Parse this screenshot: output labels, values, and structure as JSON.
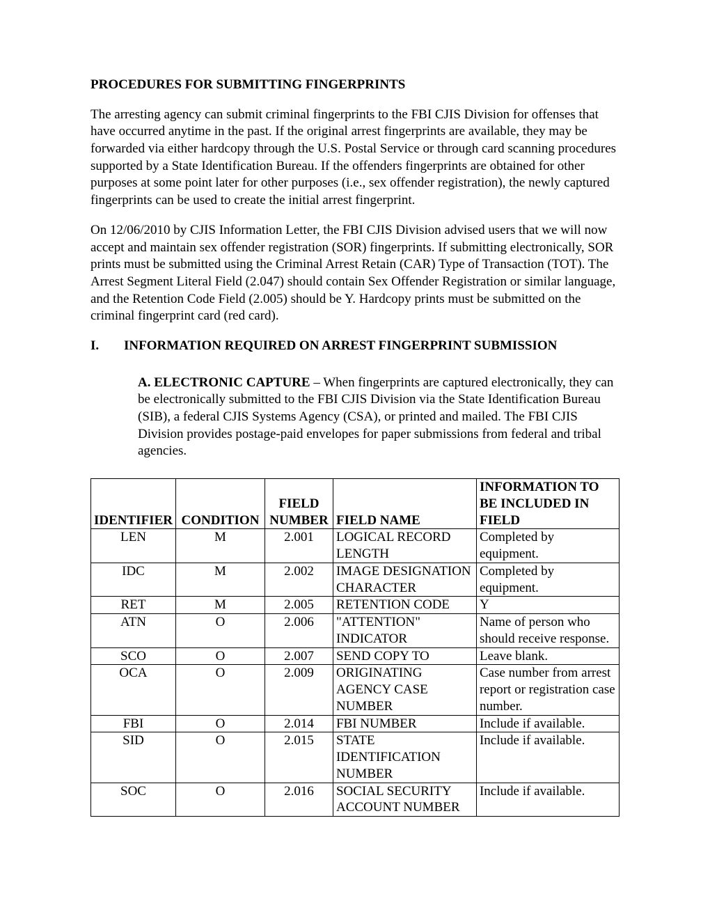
{
  "title": "PROCEDURES FOR SUBMITTING FINGERPRINTS",
  "para1": "The arresting agency can submit criminal fingerprints to the FBI CJIS Division for offenses that have occurred anytime in the past.  If the original arrest fingerprints are available, they may be forwarded via either hardcopy through the U.S. Postal Service or through card scanning procedures supported by a State Identification Bureau.  If the offenders fingerprints are obtained for other purposes at some point later for other purposes (i.e., sex offender registration), the newly captured fingerprints can be used to create the initial arrest fingerprint.",
  "para2": "On 12/06/2010 by CJIS Information Letter, the FBI CJIS Division advised users that we will now accept and maintain sex offender registration (SOR) fingerprints.  If submitting electronically, SOR prints must be submitted using the Criminal Arrest Retain (CAR) Type of Transaction (TOT).  The Arrest Segment Literal Field (2.047) should contain Sex Offender Registration or similar language, and the Retention Code Field (2.005) should be Y.  Hardcopy prints must be submitted on the criminal fingerprint card (red card).",
  "section": {
    "num": "I.",
    "title": "INFORMATION REQUIRED ON ARREST FINGERPRINT SUBMISSION"
  },
  "subsection": {
    "letter": "A.",
    "title": "ELECTRONIC CAPTURE",
    "text": " – When fingerprints are captured electronically, they can be electronically submitted to the FBI CJIS Division via the State Identification Bureau (SIB), a federal CJIS Systems Agency (CSA), or printed and mailed.  The FBI CJIS Division provides postage-paid envelopes for paper submissions from federal and tribal agencies."
  },
  "table": {
    "headers": {
      "identifier": "IDENTIFIER",
      "condition": "CONDITION",
      "fieldnum": "FIELD NUMBER",
      "fieldname": "FIELD NAME",
      "info": "INFORMATION TO BE INCLUDED IN FIELD"
    },
    "rows": [
      {
        "id": "LEN",
        "cond": "M",
        "num": "2.001",
        "name": "LOGICAL RECORD LENGTH",
        "info": "Completed by equipment."
      },
      {
        "id": "IDC",
        "cond": "M",
        "num": "2.002",
        "name": "IMAGE DESIGNATION CHARACTER",
        "info": "Completed by equipment."
      },
      {
        "id": "RET",
        "cond": "M",
        "num": "2.005",
        "name": "RETENTION CODE",
        "info": "Y"
      },
      {
        "id": "ATN",
        "cond": "O",
        "num": "2.006",
        "name": "\"ATTENTION\" INDICATOR",
        "info": "Name of person who should receive response."
      },
      {
        "id": "SCO",
        "cond": "O",
        "num": "2.007",
        "name": "SEND COPY TO",
        "info": "Leave blank."
      },
      {
        "id": "OCA",
        "cond": "O",
        "num": "2.009",
        "name": "ORIGINATING AGENCY CASE NUMBER",
        "info": "Case number from arrest report or registration case number."
      },
      {
        "id": "FBI",
        "cond": "O",
        "num": "2.014",
        "name": "FBI NUMBER",
        "info": "Include if available."
      },
      {
        "id": "SID",
        "cond": "O",
        "num": "2.015",
        "name": "STATE IDENTIFICATION NUMBER",
        "info": "Include if available."
      },
      {
        "id": "SOC",
        "cond": "O",
        "num": "2.016",
        "name": "SOCIAL SECURITY ACCOUNT NUMBER",
        "info": "Include if available."
      }
    ]
  }
}
